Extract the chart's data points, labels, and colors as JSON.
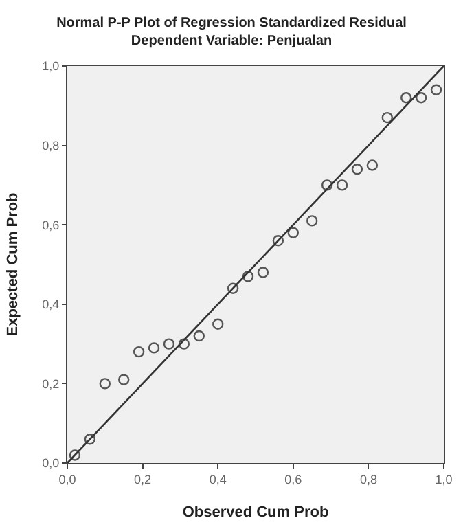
{
  "chart_data": {
    "type": "scatter",
    "title": "Normal P-P Plot of Regression Standardized Residual",
    "subtitle": "Dependent Variable: Penjualan",
    "xlabel": "Observed Cum Prob",
    "ylabel": "Expected Cum Prob",
    "xlim": [
      0,
      1
    ],
    "ylim": [
      0,
      1
    ],
    "xticks": [
      {
        "value": 0,
        "label": "0,0"
      },
      {
        "value": 0.2,
        "label": "0,2"
      },
      {
        "value": 0.4,
        "label": "0,4"
      },
      {
        "value": 0.6,
        "label": "0,6"
      },
      {
        "value": 0.8,
        "label": "0,8"
      },
      {
        "value": 1,
        "label": "1,0"
      }
    ],
    "yticks": [
      {
        "value": 0,
        "label": "0,0"
      },
      {
        "value": 0.2,
        "label": "0,2"
      },
      {
        "value": 0.4,
        "label": "0,4"
      },
      {
        "value": 0.6,
        "label": "0,6"
      },
      {
        "value": 0.8,
        "label": "0,8"
      },
      {
        "value": 1,
        "label": "1,0"
      }
    ],
    "grid": false,
    "series": [
      {
        "marker": "circle",
        "color": "#555555",
        "x": [
          0.02,
          0.06,
          0.1,
          0.15,
          0.19,
          0.23,
          0.27,
          0.31,
          0.35,
          0.4,
          0.44,
          0.48,
          0.52,
          0.56,
          0.6,
          0.65,
          0.69,
          0.73,
          0.77,
          0.81,
          0.85,
          0.9,
          0.94,
          0.98
        ],
        "values": [
          0.02,
          0.06,
          0.2,
          0.21,
          0.28,
          0.29,
          0.3,
          0.3,
          0.32,
          0.35,
          0.44,
          0.47,
          0.48,
          0.56,
          0.58,
          0.61,
          0.7,
          0.7,
          0.74,
          0.75,
          0.87,
          0.92,
          0.92,
          0.94
        ]
      },
      {
        "type": "line",
        "color": "#333333",
        "x": [
          0,
          1
        ],
        "values": [
          0,
          1
        ]
      }
    ]
  }
}
